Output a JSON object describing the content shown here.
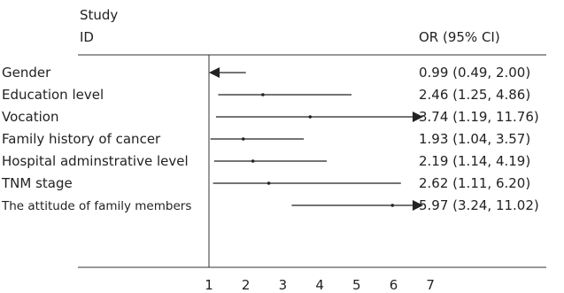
{
  "chart_data": {
    "type": "forest",
    "header": {
      "study_line1": "Study",
      "study_line2": "ID",
      "effect": "OR (95% CI)"
    },
    "reference_line": 1,
    "xlim": [
      1,
      7
    ],
    "x_ticks": [
      1,
      2,
      3,
      4,
      5,
      6,
      7
    ],
    "rows": [
      {
        "label": "Gender",
        "or": 0.99,
        "lower": 0.49,
        "upper": 2.0,
        "ci_text": "0.99 (0.49, 2.00)"
      },
      {
        "label": "Education level",
        "or": 2.46,
        "lower": 1.25,
        "upper": 4.86,
        "ci_text": "2.46 (1.25, 4.86)"
      },
      {
        "label": "Vocation",
        "or": 3.74,
        "lower": 1.19,
        "upper": 11.76,
        "ci_text": "3.74 (1.19, 11.76)"
      },
      {
        "label": "Family history of cancer",
        "or": 1.93,
        "lower": 1.04,
        "upper": 3.57,
        "ci_text": "1.93 (1.04, 3.57)"
      },
      {
        "label": "Hospital adminstrative level",
        "or": 2.19,
        "lower": 1.14,
        "upper": 4.19,
        "ci_text": "2.19 (1.14, 4.19)"
      },
      {
        "label": "TNM stage",
        "or": 2.62,
        "lower": 1.11,
        "upper": 6.2,
        "ci_text": "2.62 (1.11, 6.20)"
      },
      {
        "label": "The attitude of family members",
        "or": 5.97,
        "lower": 3.24,
        "upper": 11.02,
        "ci_text": "5.97 (3.24, 11.02)"
      }
    ]
  }
}
